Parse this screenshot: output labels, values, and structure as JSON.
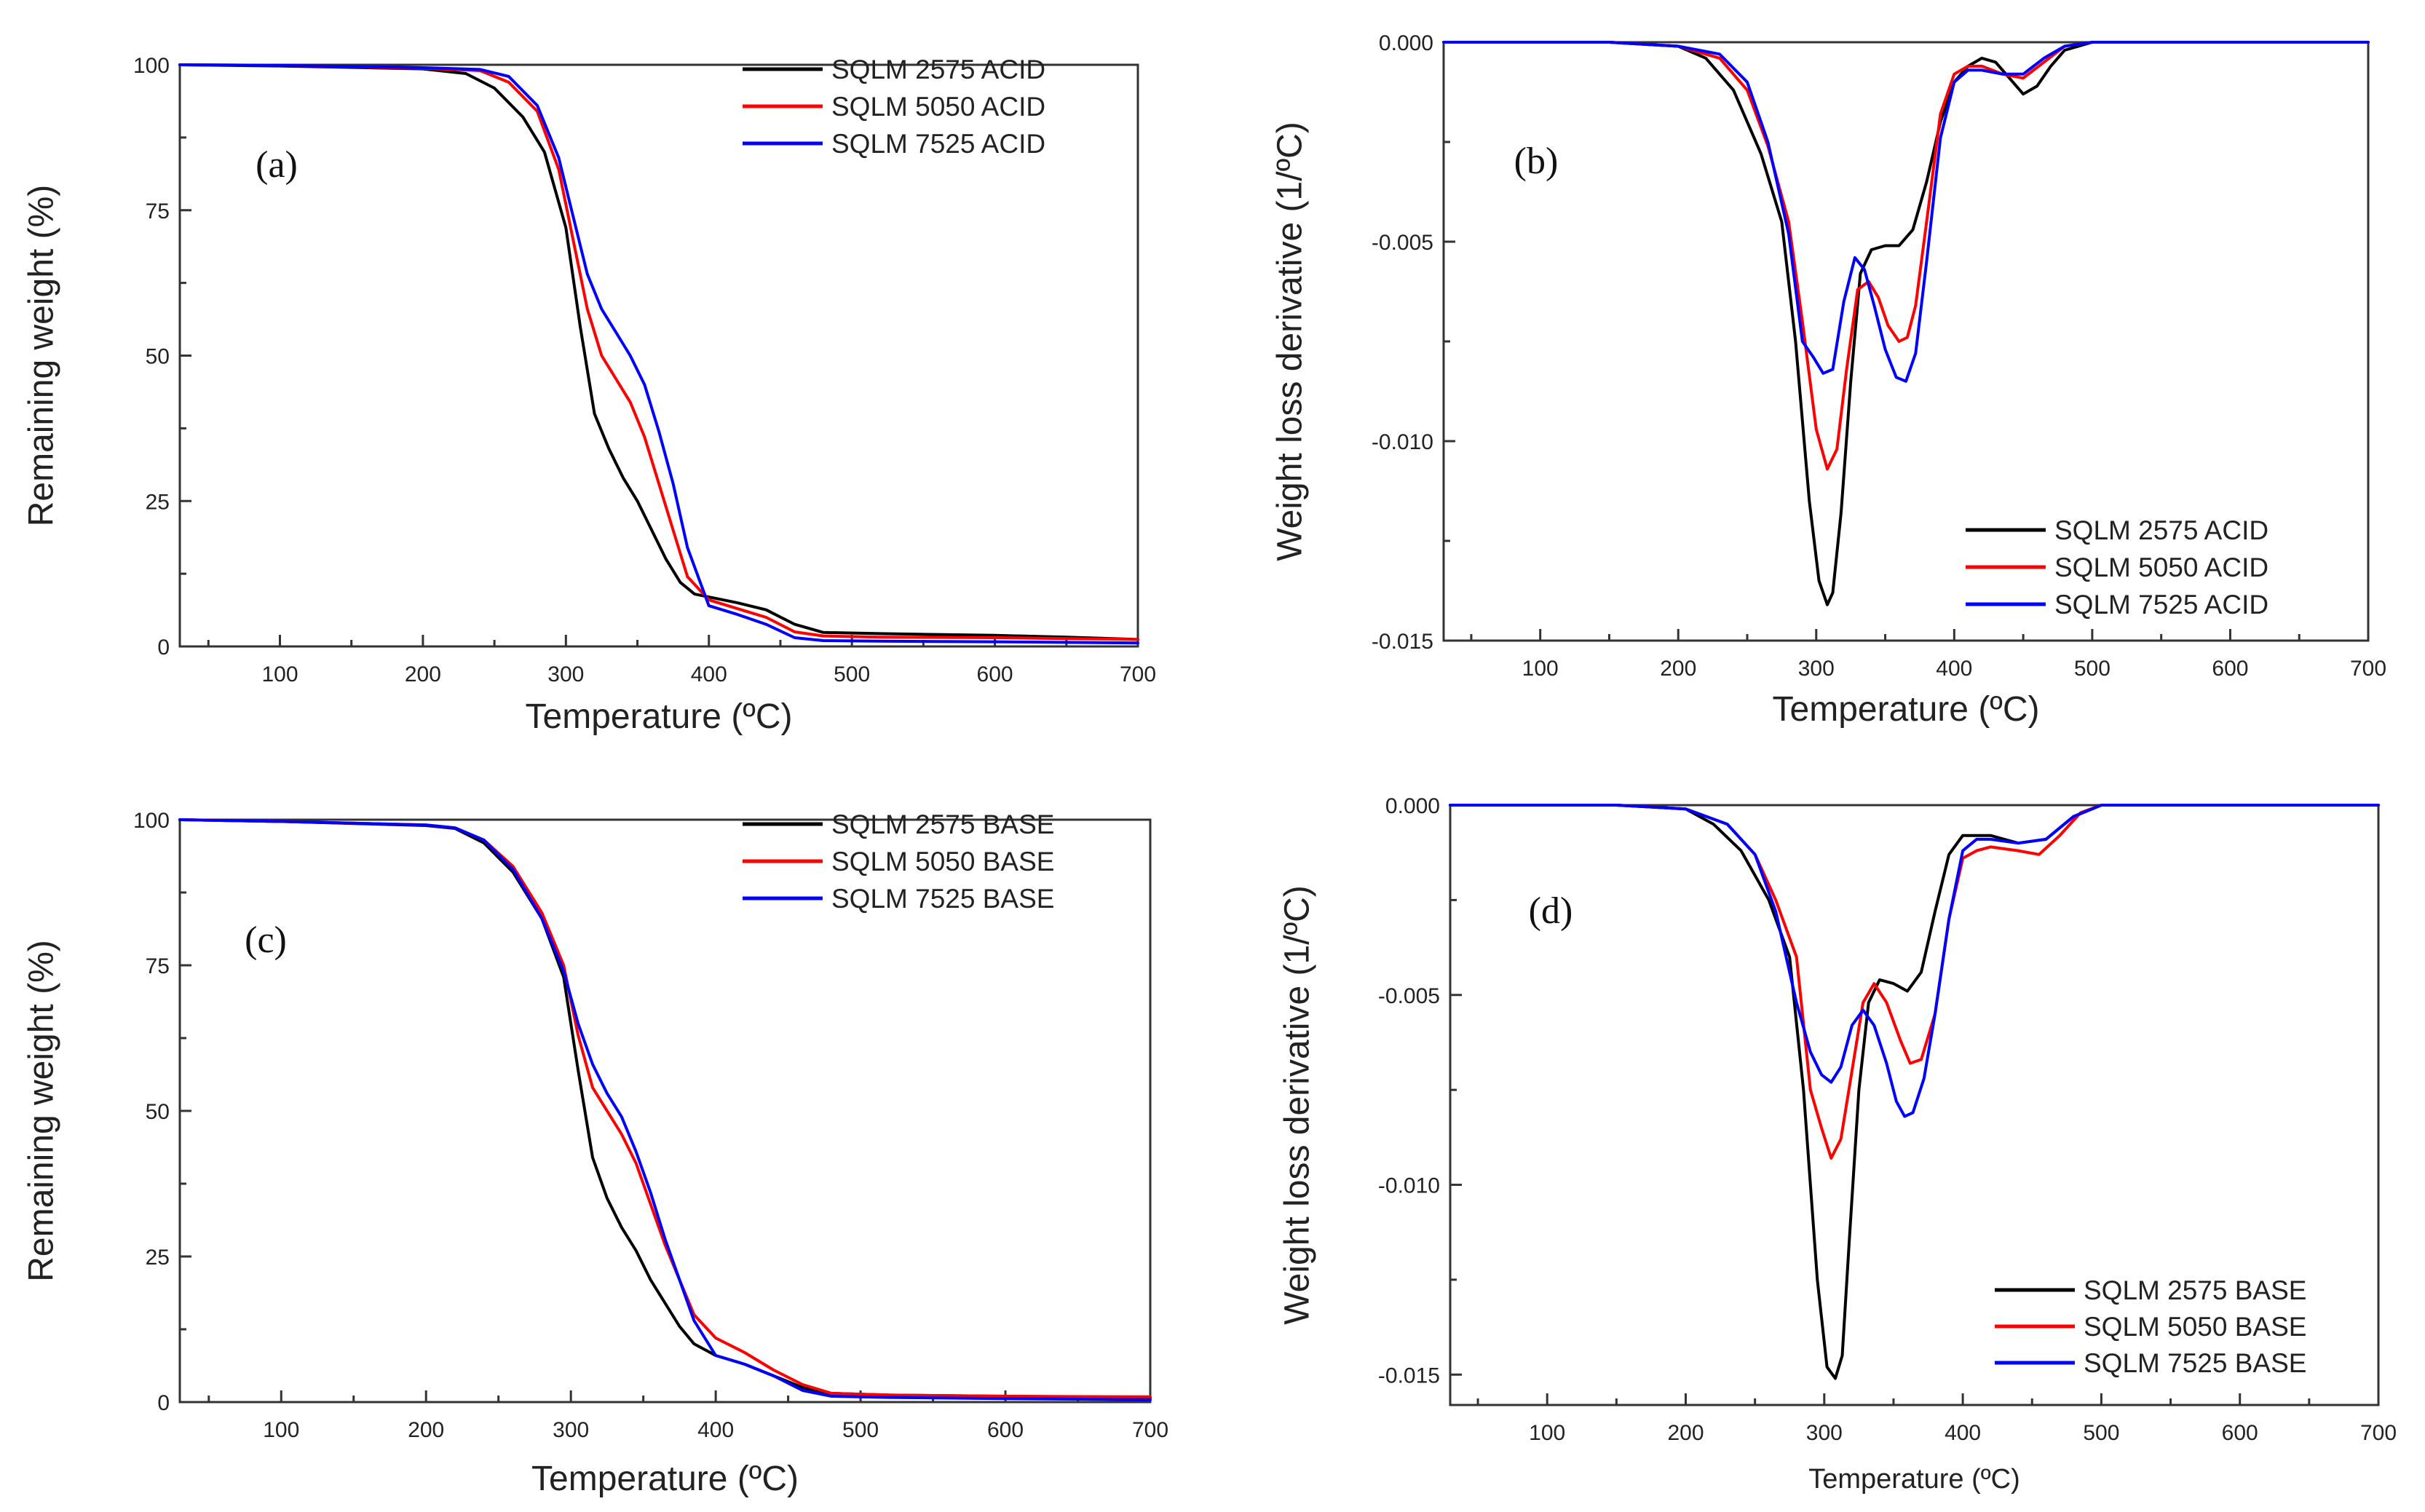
{
  "chart_data": [
    {
      "panel": "(a)",
      "type": "line",
      "xlabel": "Temperature (ºC)",
      "ylabel": "Remaining weight (%)",
      "xlim": [
        30,
        700
      ],
      "ylim": [
        0,
        100
      ],
      "xticks": [
        100,
        200,
        300,
        400,
        500,
        600,
        700
      ],
      "yticks": [
        0,
        25,
        50,
        75,
        100
      ],
      "legend_position": "top-right",
      "series": [
        {
          "name": "SQLM 2575 ACID",
          "color": "#000000",
          "x": [
            30,
            100,
            200,
            230,
            250,
            270,
            285,
            300,
            310,
            320,
            330,
            340,
            350,
            360,
            370,
            380,
            390,
            400,
            420,
            440,
            460,
            480,
            520,
            600,
            650,
            700
          ],
          "y": [
            100,
            99.8,
            99.3,
            98.5,
            96,
            91,
            85,
            72,
            55,
            40,
            34,
            29,
            25,
            20,
            15,
            11,
            9,
            8.5,
            7.5,
            6.3,
            3.8,
            2.4,
            2.2,
            1.9,
            1.6,
            1.2
          ]
        },
        {
          "name": "SQLM 5050 ACID",
          "color": "#ff0000",
          "x": [
            30,
            100,
            200,
            240,
            260,
            280,
            295,
            305,
            315,
            325,
            335,
            345,
            355,
            365,
            375,
            385,
            400,
            420,
            440,
            460,
            480,
            520,
            600,
            700
          ],
          "y": [
            100,
            99.9,
            99.4,
            99,
            97,
            92,
            82,
            70,
            58,
            50,
            46,
            42,
            36,
            28,
            20,
            12,
            8,
            6.5,
            5,
            2.5,
            1.8,
            1.6,
            1.5,
            1.2
          ]
        },
        {
          "name": "SQLM 7525 ACID",
          "color": "#0000ff",
          "x": [
            30,
            100,
            200,
            240,
            260,
            280,
            295,
            305,
            315,
            325,
            335,
            345,
            355,
            365,
            375,
            385,
            400,
            420,
            440,
            460,
            480,
            520,
            600,
            700
          ],
          "y": [
            100,
            99.9,
            99.5,
            99.2,
            98,
            93,
            84,
            74,
            64,
            58,
            54,
            50,
            45,
            37,
            28,
            17,
            7,
            5.5,
            3.8,
            1.5,
            1,
            0.9,
            0.8,
            0.6
          ]
        }
      ]
    },
    {
      "panel": "(b)",
      "type": "line",
      "xlabel": "Temperature (ºC)",
      "ylabel": "Weight loss derivative (1/ºC)",
      "xlim": [
        30,
        700
      ],
      "ylim": [
        -0.015,
        0.0
      ],
      "xticks": [
        100,
        200,
        300,
        400,
        500,
        600,
        700
      ],
      "yticks": [
        -0.015,
        -0.01,
        -0.005,
        0.0
      ],
      "ytick_labels": [
        "-0.015",
        "-0.010",
        "-0.005",
        "0.000"
      ],
      "legend_position": "bottom-right",
      "series": [
        {
          "name": "SQLM 2575 ACID",
          "color": "#000000",
          "x": [
            30,
            150,
            200,
            220,
            240,
            260,
            275,
            285,
            295,
            302,
            308,
            312,
            318,
            325,
            332,
            340,
            350,
            360,
            370,
            380,
            390,
            400,
            410,
            420,
            430,
            440,
            450,
            460,
            470,
            480,
            500,
            600,
            700
          ],
          "y": [
            0,
            0,
            -0.0001,
            -0.0004,
            -0.0012,
            -0.0028,
            -0.0045,
            -0.0075,
            -0.0115,
            -0.0135,
            -0.0141,
            -0.0138,
            -0.0118,
            -0.0085,
            -0.0058,
            -0.0052,
            -0.0051,
            -0.0051,
            -0.0047,
            -0.0035,
            -0.002,
            -0.001,
            -0.0006,
            -0.0004,
            -0.0005,
            -0.0009,
            -0.0013,
            -0.0011,
            -0.0006,
            -0.0002,
            0,
            0,
            0
          ]
        },
        {
          "name": "SQLM 5050 ACID",
          "color": "#ff0000",
          "x": [
            30,
            150,
            200,
            230,
            250,
            265,
            280,
            290,
            300,
            308,
            315,
            322,
            330,
            338,
            345,
            352,
            360,
            366,
            372,
            380,
            390,
            400,
            410,
            420,
            435,
            450,
            465,
            480,
            500,
            600,
            700
          ],
          "y": [
            0,
            0,
            -0.0001,
            -0.0004,
            -0.0012,
            -0.0026,
            -0.0045,
            -0.007,
            -0.0097,
            -0.0107,
            -0.0102,
            -0.0082,
            -0.0062,
            -0.006,
            -0.0064,
            -0.0071,
            -0.0075,
            -0.0074,
            -0.0066,
            -0.0045,
            -0.0018,
            -0.0008,
            -0.0006,
            -0.0006,
            -0.0008,
            -0.0009,
            -0.0005,
            -0.0001,
            0,
            0,
            0
          ]
        },
        {
          "name": "SQLM 7525 ACID",
          "color": "#0000ff",
          "x": [
            30,
            150,
            200,
            230,
            250,
            265,
            280,
            290,
            298,
            305,
            312,
            320,
            328,
            335,
            342,
            350,
            358,
            365,
            372,
            380,
            390,
            400,
            410,
            420,
            435,
            450,
            465,
            480,
            500,
            600,
            700
          ],
          "y": [
            0,
            0,
            -0.0001,
            -0.0003,
            -0.001,
            -0.0025,
            -0.0048,
            -0.0075,
            -0.0079,
            -0.0083,
            -0.0082,
            -0.0065,
            -0.0054,
            -0.0057,
            -0.0066,
            -0.0077,
            -0.0084,
            -0.0085,
            -0.0078,
            -0.0055,
            -0.0024,
            -0.001,
            -0.0007,
            -0.0007,
            -0.0008,
            -0.0008,
            -0.0004,
            -0.0001,
            0,
            0,
            0
          ]
        }
      ]
    },
    {
      "panel": "(c)",
      "type": "line",
      "xlabel": "Temperature (ºC)",
      "ylabel": "Remaining weight (%)",
      "xlim": [
        30,
        700
      ],
      "ylim": [
        0,
        100
      ],
      "xticks": [
        100,
        200,
        300,
        400,
        500,
        600,
        700
      ],
      "yticks": [
        0,
        25,
        50,
        75,
        100
      ],
      "legend_position": "top-right",
      "series": [
        {
          "name": "SQLM 2575 BASE",
          "color": "#000000",
          "x": [
            30,
            100,
            200,
            220,
            240,
            260,
            280,
            295,
            305,
            315,
            325,
            335,
            345,
            355,
            365,
            375,
            385,
            400,
            420,
            440,
            460,
            480,
            520,
            600,
            700
          ],
          "y": [
            100,
            99.7,
            99,
            98.5,
            96,
            91,
            83,
            73,
            57,
            42,
            35,
            30,
            26,
            21,
            17,
            13,
            10,
            8,
            6.5,
            4.5,
            2.5,
            1.5,
            1.2,
            1,
            0.8
          ]
        },
        {
          "name": "SQLM 5050 BASE",
          "color": "#ff0000",
          "x": [
            30,
            100,
            200,
            220,
            240,
            260,
            280,
            295,
            305,
            315,
            325,
            335,
            345,
            355,
            365,
            375,
            385,
            400,
            420,
            440,
            460,
            480,
            520,
            600,
            700
          ],
          "y": [
            100,
            99.7,
            99.1,
            98.6,
            96.5,
            92,
            84,
            75,
            63,
            54,
            50,
            46,
            41,
            34,
            27,
            21,
            15,
            11,
            8.5,
            5.5,
            3,
            1.5,
            1.2,
            1,
            0.9
          ]
        },
        {
          "name": "SQLM 7525 BASE",
          "color": "#0000ff",
          "x": [
            30,
            100,
            200,
            220,
            240,
            260,
            280,
            295,
            305,
            315,
            325,
            335,
            345,
            355,
            365,
            375,
            385,
            400,
            420,
            440,
            460,
            480,
            520,
            600,
            700
          ],
          "y": [
            100,
            99.7,
            99.1,
            98.6,
            96.5,
            91.5,
            83,
            74,
            65,
            58,
            53,
            49,
            43,
            36,
            28,
            21,
            14,
            8,
            6.5,
            4.5,
            2,
            1,
            0.8,
            0.6,
            0.4
          ]
        }
      ]
    },
    {
      "panel": "(d)",
      "type": "line",
      "xlabel": "Temperature (ºC)",
      "ylabel": "Weight loss derivative (1/ºC)",
      "xlim": [
        30,
        700
      ],
      "ylim": [
        -0.0158,
        0.0
      ],
      "xticks": [
        100,
        200,
        300,
        400,
        500,
        600,
        700
      ],
      "yticks": [
        -0.015,
        -0.01,
        -0.005,
        0.0
      ],
      "ytick_labels": [
        "-0.015",
        "-0.010",
        "-0.005",
        "0.000"
      ],
      "legend_position": "bottom-right",
      "series": [
        {
          "name": "SQLM 2575 BASE",
          "color": "#000000",
          "x": [
            30,
            150,
            200,
            220,
            240,
            260,
            275,
            285,
            295,
            302,
            308,
            313,
            318,
            325,
            332,
            340,
            350,
            360,
            370,
            380,
            390,
            400,
            410,
            420,
            440,
            460,
            480,
            500,
            600,
            700
          ],
          "y": [
            0,
            0,
            -0.0001,
            -0.0005,
            -0.0012,
            -0.0025,
            -0.004,
            -0.0075,
            -0.0125,
            -0.0148,
            -0.0151,
            -0.0145,
            -0.0115,
            -0.0075,
            -0.0052,
            -0.0046,
            -0.0047,
            -0.0049,
            -0.0044,
            -0.0028,
            -0.0013,
            -0.0008,
            -0.0008,
            -0.0008,
            -0.001,
            -0.0009,
            -0.0003,
            0,
            0,
            0
          ]
        },
        {
          "name": "SQLM 5050 BASE",
          "color": "#ff0000",
          "x": [
            30,
            150,
            200,
            230,
            250,
            265,
            280,
            290,
            298,
            305,
            312,
            320,
            328,
            336,
            345,
            355,
            362,
            370,
            380,
            390,
            400,
            410,
            420,
            440,
            455,
            470,
            485,
            500,
            600,
            700
          ],
          "y": [
            0,
            0,
            -0.0001,
            -0.0005,
            -0.0013,
            -0.0025,
            -0.004,
            -0.0075,
            -0.0085,
            -0.0093,
            -0.0088,
            -0.007,
            -0.0052,
            -0.0047,
            -0.0052,
            -0.0062,
            -0.0068,
            -0.0067,
            -0.0055,
            -0.003,
            -0.0014,
            -0.0012,
            -0.0011,
            -0.0012,
            -0.0013,
            -0.0008,
            -0.0002,
            0,
            0,
            0
          ]
        },
        {
          "name": "SQLM 7525 BASE",
          "color": "#0000ff",
          "x": [
            30,
            150,
            200,
            230,
            250,
            265,
            280,
            290,
            298,
            305,
            312,
            320,
            328,
            336,
            345,
            352,
            358,
            364,
            372,
            380,
            390,
            400,
            410,
            420,
            440,
            460,
            480,
            500,
            600,
            700
          ],
          "y": [
            0,
            0,
            -0.0001,
            -0.0005,
            -0.0013,
            -0.0028,
            -0.0052,
            -0.0065,
            -0.0071,
            -0.0073,
            -0.0069,
            -0.0058,
            -0.0054,
            -0.0058,
            -0.0068,
            -0.0078,
            -0.0082,
            -0.0081,
            -0.0072,
            -0.0055,
            -0.003,
            -0.0012,
            -0.0009,
            -0.0009,
            -0.001,
            -0.0009,
            -0.0003,
            0,
            0,
            0
          ]
        }
      ]
    }
  ]
}
